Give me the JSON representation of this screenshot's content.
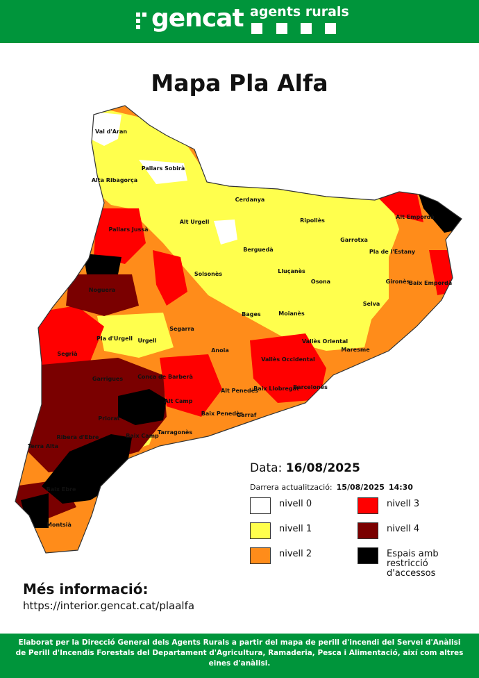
{
  "header": {
    "logo": "gencat",
    "subtitle": "agents rurals"
  },
  "title": "Mapa Pla Alfa",
  "regions": [
    "Val d'Aran",
    "Pallars Sobirà",
    "Alta Ribagorça",
    "Cerdanya",
    "Alt Urgell",
    "Pallars Jussà",
    "Ripollès",
    "Garrotxa",
    "Alt Empordà",
    "Pla de l'Estany",
    "Berguedà",
    "Solsonès",
    "Lluçanès",
    "Osona",
    "Gironès",
    "Baix Empordà",
    "Noguera",
    "Selva",
    "Bages",
    "Moianès",
    "Segarra",
    "Pla d'Urgell",
    "Urgell",
    "Vallès Oriental",
    "Segrià",
    "Anoia",
    "Vallès Occidental",
    "Maresme",
    "Garrigues",
    "Conca de Barberà",
    "Alt Penedès",
    "Baix Llobregat",
    "Barcelonès",
    "Alt Camp",
    "Priorat",
    "Baix Penedès",
    "Garraf",
    "Ribera d'Ebre",
    "Baix Camp",
    "Tarragonès",
    "Terra Alta",
    "Baix Ebre",
    "Montsià"
  ],
  "date": {
    "label": "Data:",
    "value": "16/08/2025"
  },
  "update": {
    "label": "Darrera actualització:",
    "date": "15/08/2025",
    "time": "14:30"
  },
  "legend": [
    {
      "name": "nivell 0",
      "color": "#ffffff"
    },
    {
      "name": "nivell 3",
      "color": "#ff0000"
    },
    {
      "name": "nivell 1",
      "color": "#ffff4d"
    },
    {
      "name": "nivell 4",
      "color": "#7a0000"
    },
    {
      "name": "nivell 2",
      "color": "#ff8c1a"
    },
    {
      "name": "Espais amb restricció d'accessos",
      "color": "#000000"
    }
  ],
  "info": {
    "title": "Més informació:",
    "url": "https://interior.gencat.cat/plaalfa"
  },
  "footer": "Elaborat per la Direcció General dels Agents Rurals a partir del mapa de perill d'incendi del Servei d'Anàlisi de Perill d'Incendis Forestals del Departament d'Agricultura, Ramaderia, Pesca i Alimentació, així com altres eines d'anàlisi."
}
